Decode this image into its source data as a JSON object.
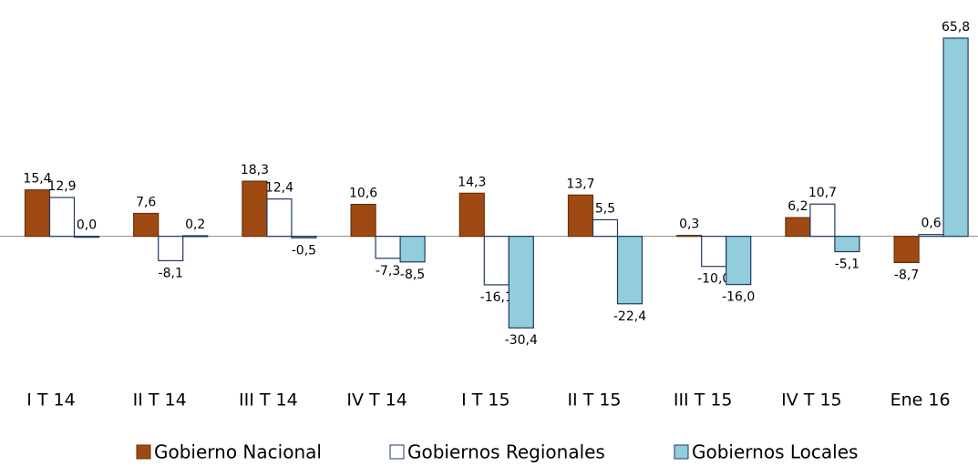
{
  "chart_data": {
    "type": "bar",
    "categories": [
      "I T 14",
      "II T 14",
      "III T 14",
      "IV T 14",
      "I T 15",
      "II T 15",
      "III T 15",
      "IV T 15",
      "Ene 16"
    ],
    "series": [
      {
        "name": "Gobierno Nacional",
        "color": "#9e4a12",
        "values": [
          15.4,
          7.6,
          18.3,
          10.6,
          14.3,
          13.7,
          0.3,
          6.2,
          -8.7
        ],
        "value_labels": [
          "15,4",
          "7,6",
          "18,3",
          "10,6",
          "14,3",
          "13,7",
          "0,3",
          "6,2",
          "-8,7"
        ]
      },
      {
        "name": "Gobiernos Regionales",
        "color": "#ffffff",
        "values": [
          12.9,
          -8.1,
          12.4,
          -7.3,
          -16.1,
          5.5,
          -10.0,
          10.7,
          0.6
        ],
        "value_labels": [
          "12,9",
          "-8,1",
          "12,4",
          "-7,3",
          "-16,1",
          "5,5",
          "-10,0",
          "10,7",
          "0,6"
        ]
      },
      {
        "name": "Gobiernos Locales",
        "color": "#92cddc",
        "values": [
          0.0,
          0.2,
          -0.5,
          -8.5,
          -30.4,
          -22.4,
          -16.0,
          -5.1,
          65.8
        ],
        "value_labels": [
          "0,0",
          "0,2",
          "-0,5",
          "-8,5",
          "-30,4",
          "-22,4",
          "-16,0",
          "-5,1",
          "65,8"
        ]
      }
    ],
    "ylim": [
      -40,
      70
    ],
    "legend": "bottom"
  }
}
